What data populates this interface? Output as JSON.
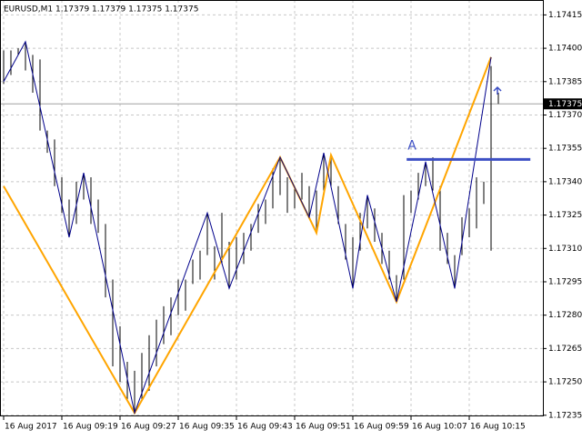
{
  "chart_data": {
    "type": "ohlc",
    "title": "EURUSD,M1  1.17379 1.17379 1.17375 1.17375",
    "bar_color": "#000000",
    "x": [
      0,
      1,
      2,
      3,
      4,
      5,
      6,
      7,
      8,
      9,
      10,
      11,
      12,
      13,
      14,
      15,
      16,
      17,
      18,
      19,
      20,
      21,
      22,
      23,
      24,
      25,
      26,
      27,
      28,
      29,
      30,
      31,
      32,
      33,
      34,
      35,
      36,
      37,
      38,
      39,
      40,
      41,
      42,
      43,
      44,
      45,
      46,
      47,
      48,
      49,
      50,
      51,
      52,
      53,
      54,
      55,
      56,
      57,
      58,
      59,
      60,
      61,
      62,
      63,
      64,
      65,
      66,
      67,
      68
    ],
    "high": [
      1.17399,
      1.17399,
      1.174,
      1.17403,
      1.17397,
      1.17395,
      1.17363,
      1.17359,
      1.17342,
      1.17332,
      1.1734,
      1.17344,
      1.17342,
      1.17332,
      1.17321,
      1.17296,
      1.17275,
      1.17259,
      1.17255,
      1.17263,
      1.17271,
      1.17278,
      1.17284,
      1.17288,
      1.17296,
      1.17296,
      1.17305,
      1.17309,
      1.17326,
      1.17311,
      1.17326,
      1.17313,
      1.17315,
      1.17317,
      1.17321,
      1.1733,
      1.17332,
      1.17346,
      1.17351,
      1.17342,
      1.17338,
      1.17344,
      1.17338,
      1.17336,
      1.17353,
      1.17351,
      1.17338,
      1.17321,
      1.17315,
      1.17326,
      1.17334,
      1.17328,
      1.17317,
      1.17309,
      1.17298,
      1.17334,
      1.17336,
      1.17344,
      1.17349,
      1.17351,
      1.17338,
      1.17317,
      1.17307,
      1.17324,
      1.17328,
      1.17342,
      1.1734,
      1.17392,
      1.1738
    ],
    "low": [
      1.17384,
      1.17388,
      1.17397,
      1.1739,
      1.1738,
      1.17363,
      1.17353,
      1.17338,
      1.17326,
      1.17315,
      1.17321,
      1.17332,
      1.17321,
      1.17317,
      1.17288,
      1.17257,
      1.1725,
      1.17242,
      1.17236,
      1.17242,
      1.17246,
      1.17257,
      1.17267,
      1.17271,
      1.1728,
      1.17282,
      1.17294,
      1.17296,
      1.17307,
      1.17296,
      1.17303,
      1.17292,
      1.17296,
      1.17303,
      1.17309,
      1.17317,
      1.17321,
      1.17328,
      1.17334,
      1.17326,
      1.17328,
      1.17332,
      1.17324,
      1.17317,
      1.17336,
      1.17338,
      1.17321,
      1.17305,
      1.17292,
      1.17309,
      1.17319,
      1.17313,
      1.17303,
      1.17296,
      1.17286,
      1.17296,
      1.17326,
      1.17332,
      1.17338,
      1.17336,
      1.17309,
      1.17303,
      1.17292,
      1.17307,
      1.17315,
      1.17319,
      1.1733,
      1.17309,
      1.17375
    ],
    "series": [
      {
        "color": "#ffa500",
        "x": [
          0,
          18,
          38,
          43,
          45,
          54,
          67
        ],
        "values": [
          1.17338,
          1.17236,
          1.17351,
          1.17317,
          1.17352,
          1.17286,
          1.17396
        ]
      },
      {
        "color": "#00008b",
        "x": [
          0,
          3,
          9,
          11,
          18,
          28,
          31,
          38,
          42,
          44,
          48,
          50,
          54,
          58,
          62,
          67
        ],
        "values": [
          1.17385,
          1.17403,
          1.17315,
          1.17344,
          1.17236,
          1.17326,
          1.17292,
          1.17351,
          1.17324,
          1.17353,
          1.17292,
          1.17334,
          1.17286,
          1.17349,
          1.17292,
          1.17396
        ]
      }
    ],
    "level": {
      "label": "A",
      "value": 1.1735,
      "x": [
        55.4,
        72.4
      ],
      "color": "#3d4fc4"
    },
    "current_price": 1.17375,
    "xlim": [
      -0.5,
      74.25
    ],
    "ylim": [
      1.172345,
      1.174217
    ],
    "yticks": [
      1.17415,
      {
        "value": 1.174,
        "label": "1.17400"
      },
      1.17385,
      {
        "value": 1.1737,
        "label": "1.17370"
      },
      1.17355,
      {
        "value": 1.1734,
        "label": "1.17340"
      },
      1.17325,
      {
        "value": 1.1731,
        "label": "1.17310"
      },
      1.17295,
      {
        "value": 1.1728,
        "label": "1.17280"
      },
      1.17265,
      {
        "value": 1.1725,
        "label": "1.17250"
      },
      1.17235
    ],
    "xticks": [
      {
        "value": 0,
        "label": "16 Aug 2017"
      },
      {
        "value": 8,
        "label": "16 Aug 09:19"
      },
      {
        "value": 16,
        "label": "16 Aug 09:27"
      },
      {
        "value": 24,
        "label": "16 Aug 09:35"
      },
      {
        "value": 32,
        "label": "16 Aug 09:43"
      },
      {
        "value": 40,
        "label": "16 Aug 09:51"
      },
      {
        "value": 48,
        "label": "16 Aug 09:59"
      },
      {
        "value": 56,
        "label": "16 Aug 10:07"
      },
      {
        "value": 64,
        "label": "16 Aug 10:15"
      }
    ],
    "grid": true
  }
}
